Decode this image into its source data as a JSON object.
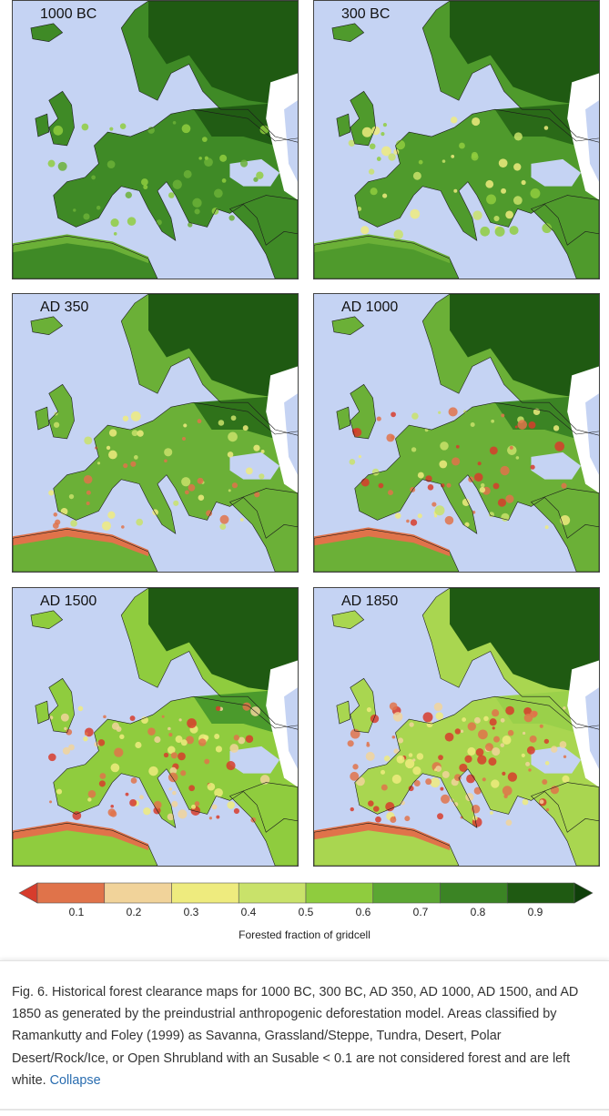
{
  "panels": [
    {
      "label": "1000 BC"
    },
    {
      "label": "300 BC"
    },
    {
      "label": "AD 350"
    },
    {
      "label": "AD 1000"
    },
    {
      "label": "AD 1500"
    },
    {
      "label": "AD 1850"
    }
  ],
  "colorbar": {
    "ticks": [
      "0.1",
      "0.2",
      "0.3",
      "0.4",
      "0.5",
      "0.6",
      "0.7",
      "0.8",
      "0.9"
    ],
    "title": "Forested fraction of gridcell",
    "colors": [
      "#d73c2c",
      "#e0734a",
      "#f1d39a",
      "#eeeb7e",
      "#c9e26a",
      "#8fcc3e",
      "#5ba732",
      "#3b8424",
      "#1f5a12",
      "#0f3f0a"
    ]
  },
  "caption": {
    "text": "Fig. 6. Historical forest clearance maps for 1000 BC, 300 BC, AD 350, AD 1000, AD 1500, and AD 1850 as generated by the preindustrial anthropogenic deforestation model. Areas classified by Ramankutty and Foley (1999) as Savanna, Grassland/Steppe, Tundra, Desert, Polar Desert/Rock/Ice, or Open Shrubland with an Susable < 0.1 are not considered forest and are left white.",
    "link": "Collapse"
  },
  "colors": {
    "sea": "#c5d3f3",
    "link": "#2a6db0"
  }
}
